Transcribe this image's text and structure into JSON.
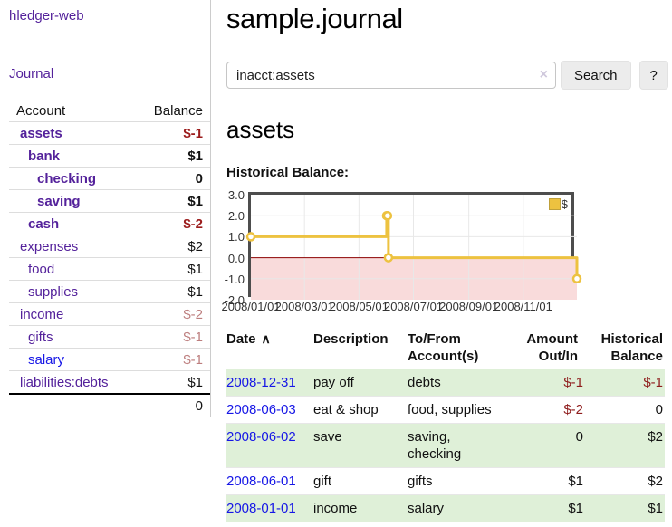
{
  "colors": {
    "link_purple": "#54229b",
    "link_blue": "#1717e6",
    "neg_strong": "#9b1b1b",
    "neg_muted": "#bd7e7e",
    "row_green": "#dff0d8",
    "series_yellow": "#edc240",
    "negative_region_pink": "#f9dbdb",
    "zero_line_red": "#8b0000",
    "grid_gray": "#e8e8e8"
  },
  "sidebar": {
    "app_title": "hledger-web",
    "journal_label": "Journal",
    "table": {
      "account_header": "Account",
      "balance_header": "Balance",
      "total": "0"
    },
    "accounts": [
      {
        "name": "assets",
        "depth": 1,
        "bold": true,
        "balance": "$-1"
      },
      {
        "name": "bank",
        "depth": 2,
        "bold": true,
        "balance": "$1"
      },
      {
        "name": "checking",
        "depth": 3,
        "bold": true,
        "balance": "0"
      },
      {
        "name": "saving",
        "depth": 3,
        "bold": true,
        "balance": "$1"
      },
      {
        "name": "cash",
        "depth": 2,
        "bold": true,
        "balance": "$-2"
      },
      {
        "name": "expenses",
        "depth": 1,
        "bold": false,
        "balance": "$2"
      },
      {
        "name": "food",
        "depth": 2,
        "bold": false,
        "balance": "$1"
      },
      {
        "name": "supplies",
        "depth": 2,
        "bold": false,
        "balance": "$1"
      },
      {
        "name": "income",
        "depth": 1,
        "bold": false,
        "balance": "$-2"
      },
      {
        "name": "gifts",
        "depth": 2,
        "bold": false,
        "balance": "$-1"
      },
      {
        "name": "salary",
        "depth": 2,
        "bold": false,
        "balance": "$-1",
        "link_state": "unvisited"
      },
      {
        "name": "liabilities:debts",
        "depth": 1,
        "bold": false,
        "balance": "$1"
      }
    ]
  },
  "main": {
    "title": "sample.journal",
    "search": {
      "value": "inacct:assets",
      "clear_icon": "×",
      "search_label": "Search",
      "help_label": "?"
    },
    "account_heading": "assets",
    "chart_label": "Historical Balance:"
  },
  "chart_data": {
    "type": "line",
    "style": "step",
    "title": "Historical Balance",
    "legend_position": "top-right",
    "grid": true,
    "ylim": [
      -2,
      3
    ],
    "xlim_days": [
      0,
      365
    ],
    "y_ticks": [
      "3.0",
      "2.0",
      "1.0",
      "0.0",
      "-1.0",
      "-2.0"
    ],
    "x_ticks": [
      {
        "label": "2008/01/01",
        "day": 0
      },
      {
        "label": "2008/03/01",
        "day": 60
      },
      {
        "label": "2008/05/01",
        "day": 121
      },
      {
        "label": "2008/07/01",
        "day": 182
      },
      {
        "label": "2008/09/01",
        "day": 244
      },
      {
        "label": "2008/11/01",
        "day": 305
      }
    ],
    "series": [
      {
        "name": "$",
        "color": "#edc240",
        "points": [
          {
            "date": "2008-01-01",
            "day": 0,
            "value": 1
          },
          {
            "date": "2008-06-01",
            "day": 152,
            "value": 2
          },
          {
            "date": "2008-06-02",
            "day": 153,
            "value": 2
          },
          {
            "date": "2008-06-03",
            "day": 154,
            "value": 0
          },
          {
            "date": "2008-12-31",
            "day": 365,
            "value": -1
          }
        ]
      }
    ]
  },
  "register": {
    "headers": {
      "date": "Date",
      "description": "Description",
      "accounts": "To/From Account(s)",
      "amount": "Amount Out/In",
      "balance": "Historical Balance"
    },
    "sort_icon": "∧",
    "rows": [
      {
        "date": "2008-12-31",
        "description": "pay off",
        "accounts": "debts",
        "amount": "$-1",
        "balance": "$-1"
      },
      {
        "date": "2008-06-03",
        "description": "eat & shop",
        "accounts": "food, supplies",
        "amount": "$-2",
        "balance": "0"
      },
      {
        "date": "2008-06-02",
        "description": "save",
        "accounts": "saving, checking",
        "amount": "0",
        "balance": "$2"
      },
      {
        "date": "2008-06-01",
        "description": "gift",
        "accounts": "gifts",
        "amount": "$1",
        "balance": "$2"
      },
      {
        "date": "2008-01-01",
        "description": "income",
        "accounts": "salary",
        "amount": "$1",
        "balance": "$1"
      }
    ]
  }
}
